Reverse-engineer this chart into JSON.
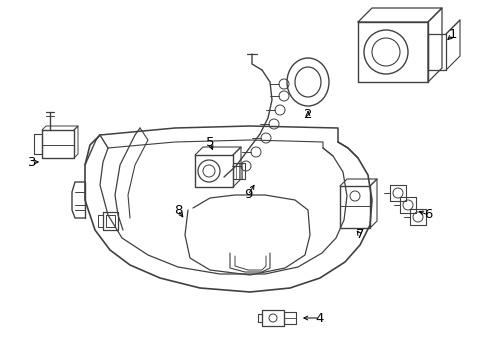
{
  "background_color": "#ffffff",
  "line_color": "#404040",
  "text_color": "#000000",
  "fig_width": 4.9,
  "fig_height": 3.6,
  "dpi": 100
}
